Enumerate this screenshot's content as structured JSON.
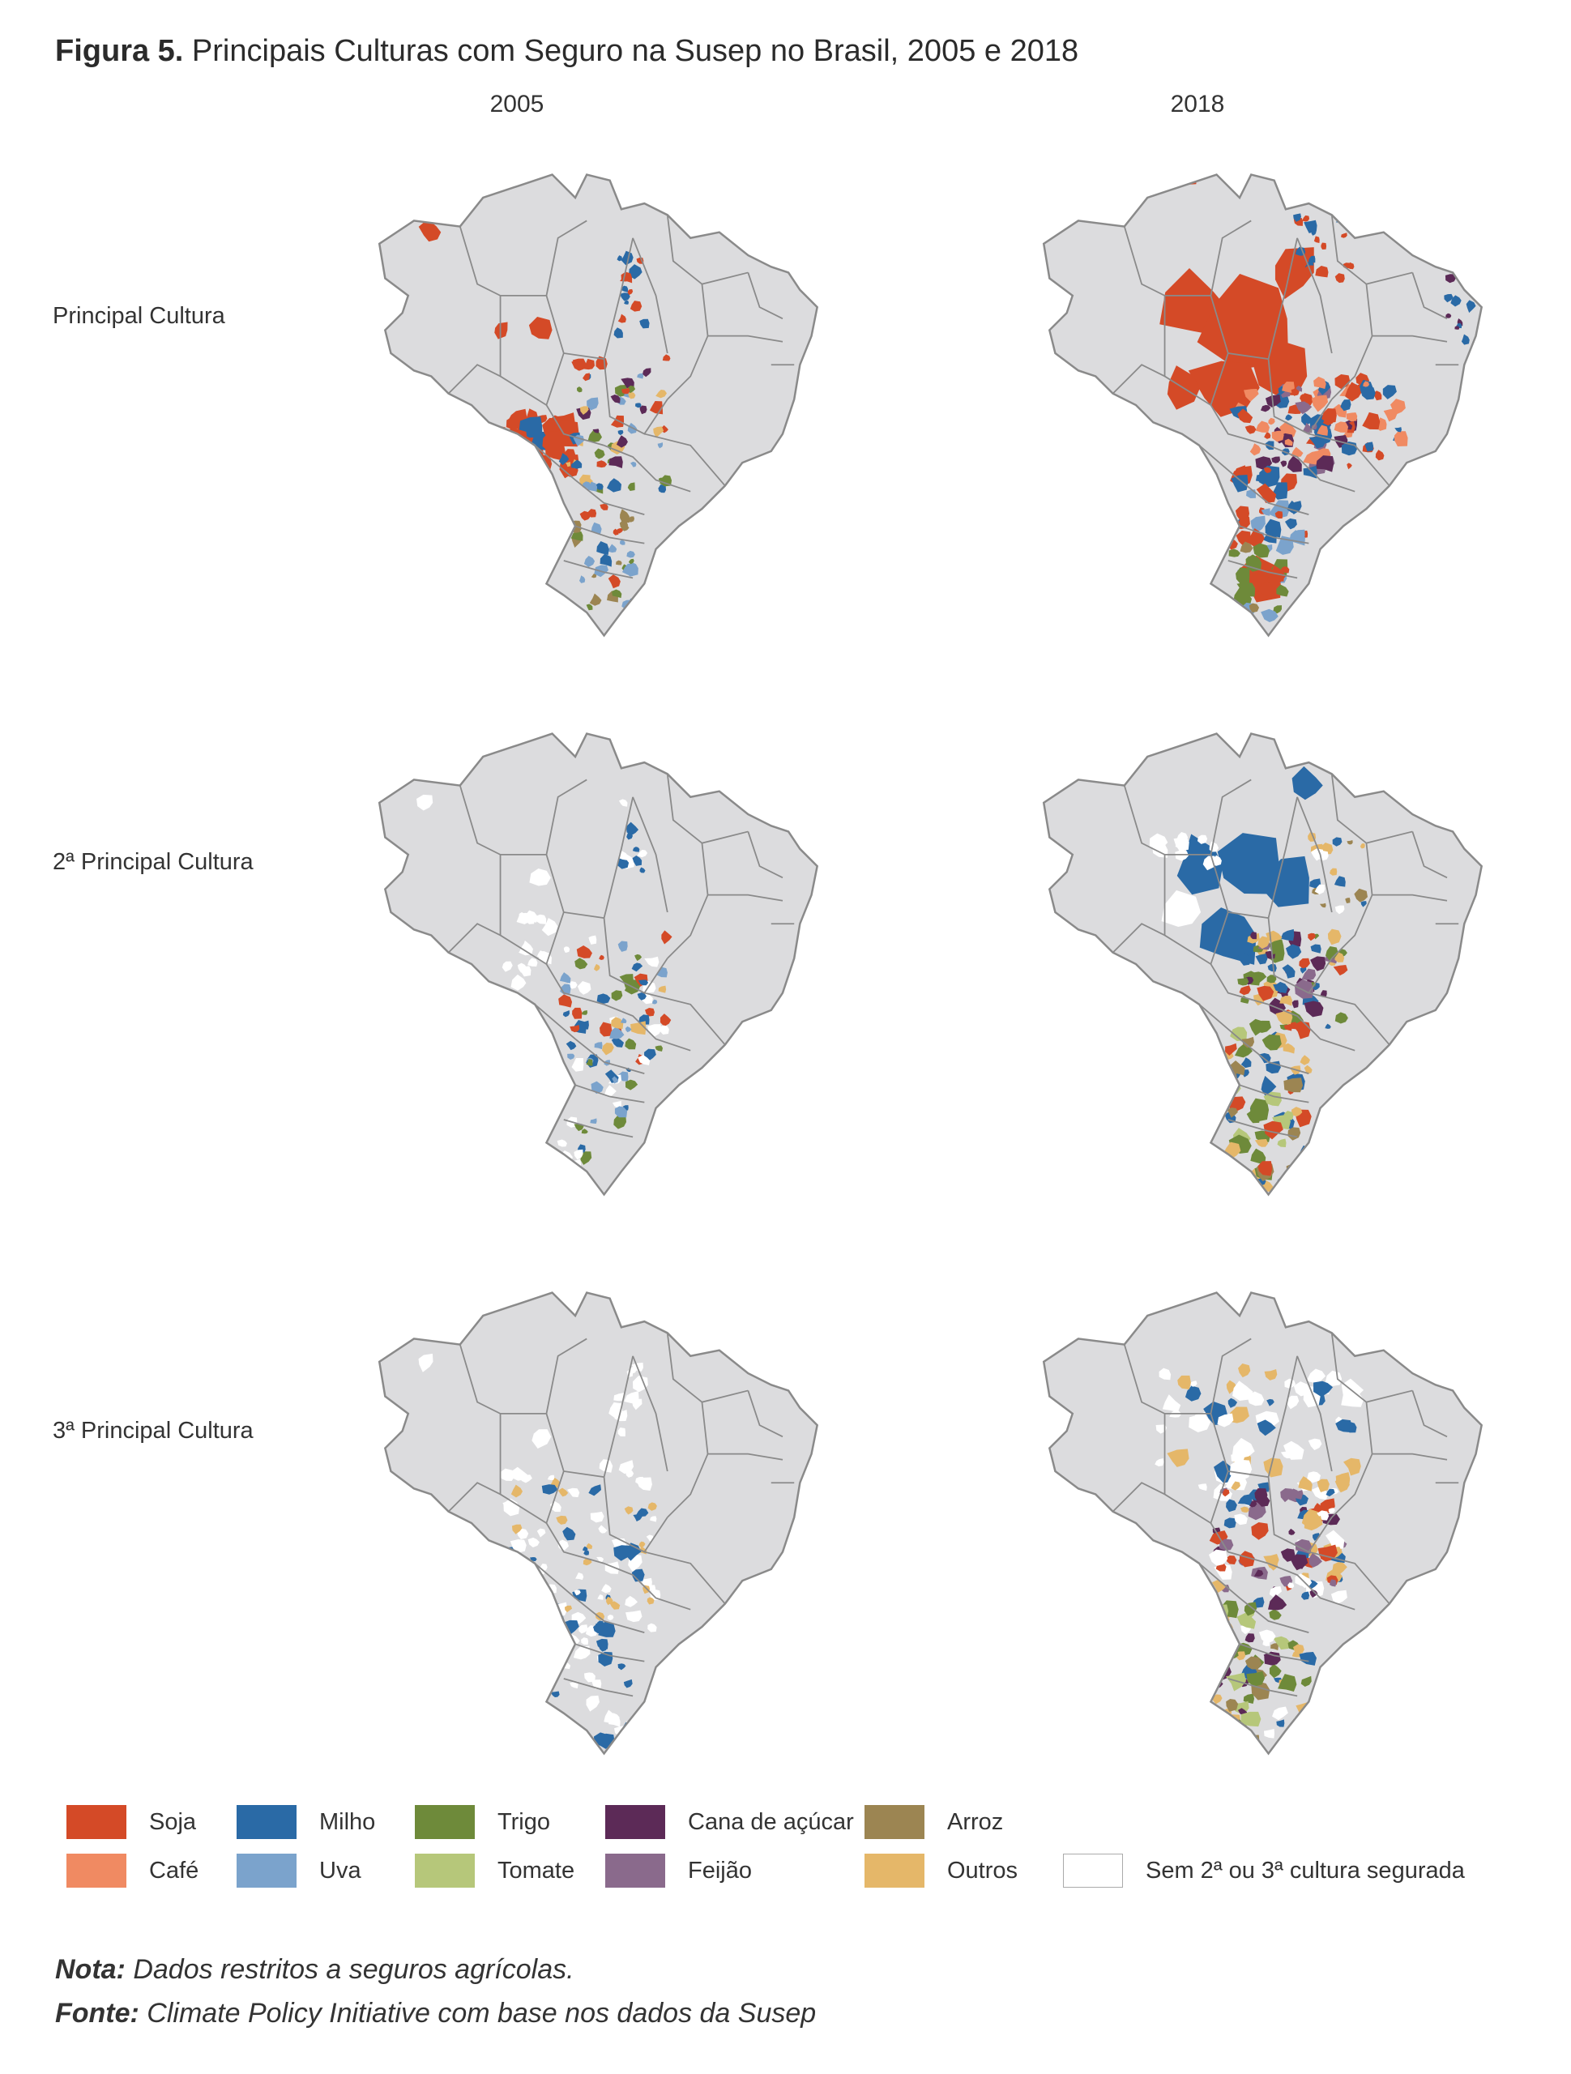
{
  "figure": {
    "title_bold": "Figura 5.",
    "title_rest": " Principais Culturas com Seguro na Susep no Brasil, 2005 e 2018",
    "columns": [
      "2005",
      "2018"
    ],
    "rows": [
      "Principal Cultura",
      "2ª Principal Cultura",
      "3ª Principal Cultura"
    ]
  },
  "map_style": {
    "land_color": "#dcdcde",
    "border_color": "#8a8a8a",
    "no_crop_color": "#ffffff"
  },
  "legend": [
    {
      "label": "Soja",
      "color": "#d44a27"
    },
    {
      "label": "Milho",
      "color": "#2a6aa6"
    },
    {
      "label": "Trigo",
      "color": "#6e8a3a"
    },
    {
      "label": "Cana de açúcar",
      "color": "#5c2a57"
    },
    {
      "label": "Arroz",
      "color": "#9c8552"
    },
    {
      "label": "Café",
      "color": "#f08a62"
    },
    {
      "label": "Uva",
      "color": "#7ba3cc"
    },
    {
      "label": "Tomate",
      "color": "#b6c77a"
    },
    {
      "label": "Feijão",
      "color": "#8a6a8c"
    },
    {
      "label": "Outros",
      "color": "#e5b769"
    },
    {
      "label": "Sem 2ª ou 3ª cultura segurada",
      "color": "#ffffff"
    }
  ],
  "notes": {
    "nota_label": "Nota:",
    "nota_text": " Dados restritos a seguros agrícolas.",
    "fonte_label": "Fonte:",
    "fonte_text": " Climate Policy Initiative com base nos dados da Susep"
  }
}
